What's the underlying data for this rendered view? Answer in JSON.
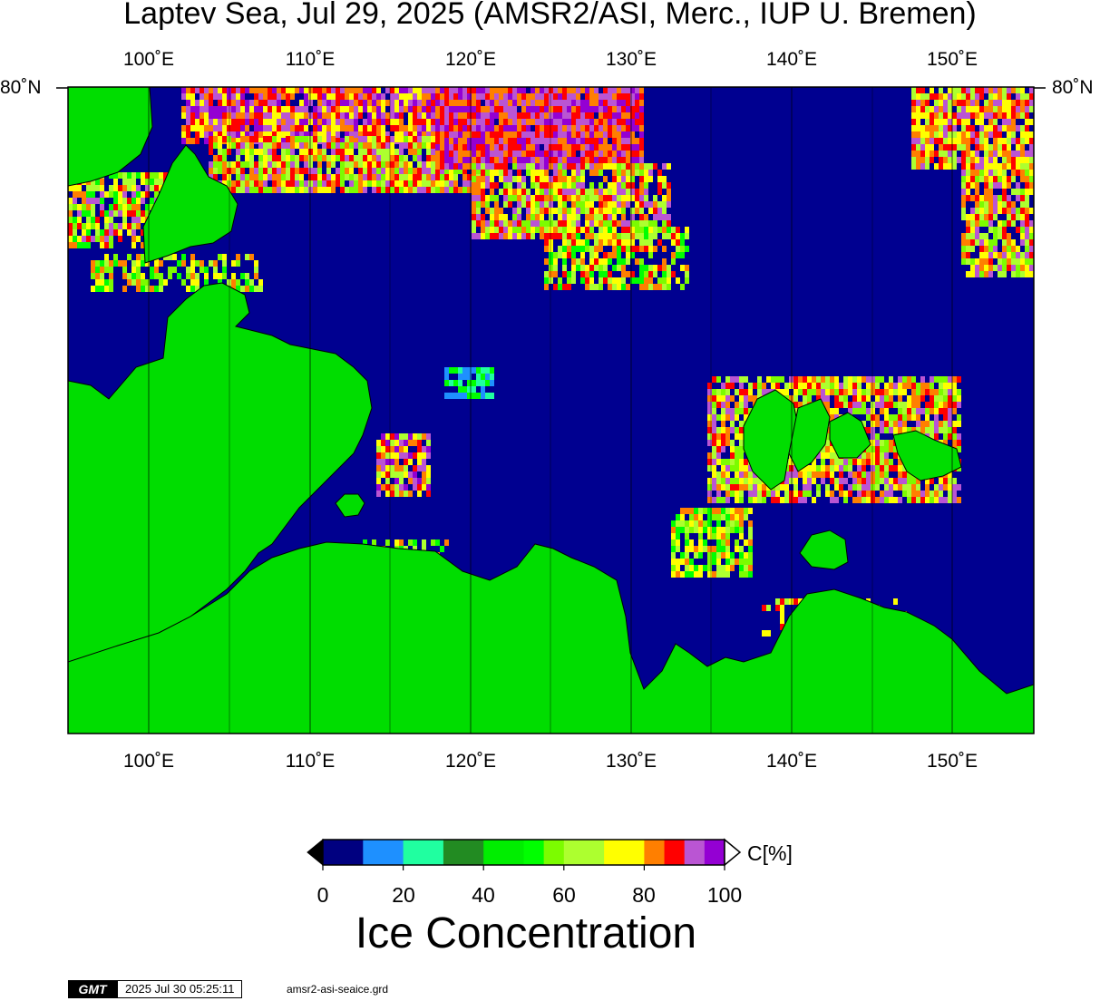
{
  "title": "Laptev Sea, Jul 29, 2025 (AMSR2/ASI, Merc., IUP U. Bremen)",
  "lon_labels": [
    "100˚E",
    "110˚E",
    "120˚E",
    "130˚E",
    "140˚E",
    "150˚E"
  ],
  "lat_label": "80˚N",
  "colorbar": {
    "colors": [
      "#000080",
      "#1e90ff",
      "#20ffa0",
      "#228b22",
      "#00ee00",
      "#00ff00",
      "#7cfc00",
      "#adff2f",
      "#ffff00",
      "#ff7f00",
      "#ff0000",
      "#ba55d3",
      "#9400d3"
    ],
    "ticks": [
      "0",
      "20",
      "40",
      "60",
      "80",
      "100"
    ],
    "unit": "C[%]",
    "title": "Ice Concentration"
  },
  "footer": {
    "logo": "GMT",
    "timestamp": "2025 Jul 30 05:25:11",
    "grid_file": "amsr2-asi-seaice.grd"
  },
  "colors": {
    "ocean": "#000090",
    "land": "#00dd00"
  }
}
